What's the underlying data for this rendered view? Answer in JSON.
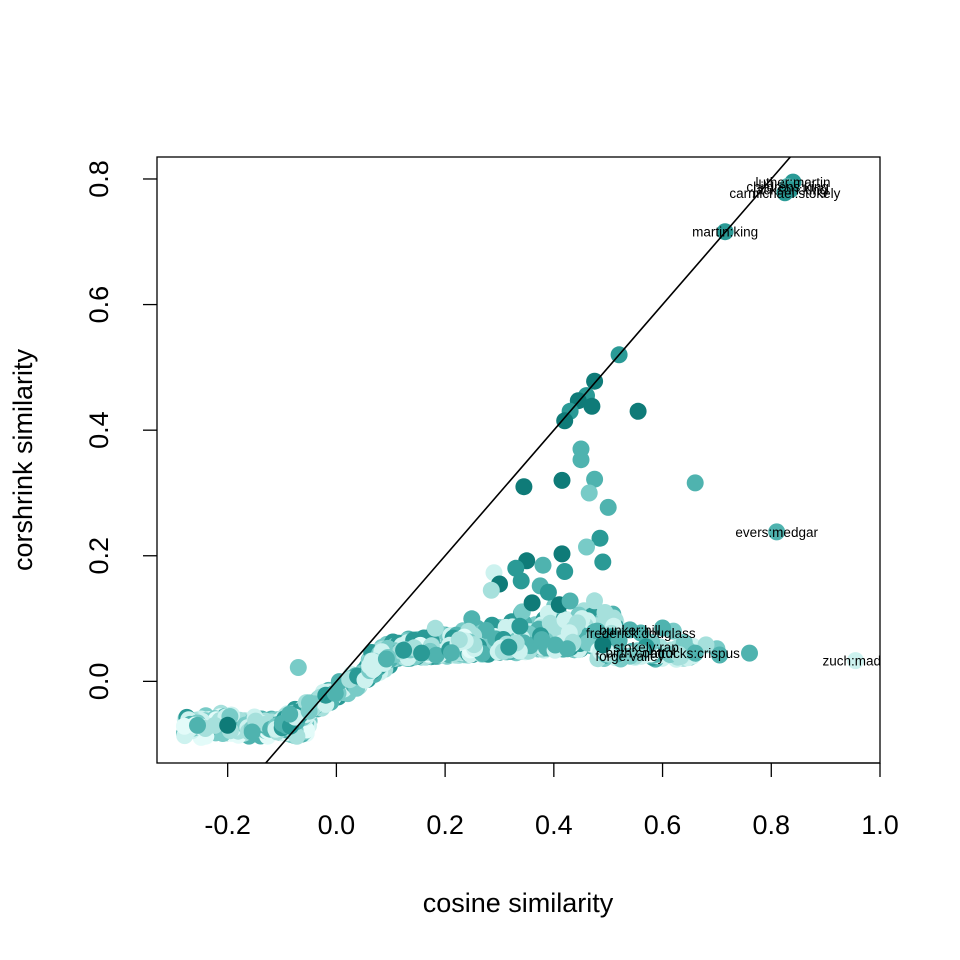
{
  "chart_data": {
    "type": "scatter",
    "title": "",
    "xlabel": "cosine similarity",
    "ylabel": "corshrink similarity",
    "xlim": [
      -0.33,
      1.0
    ],
    "ylim": [
      -0.13,
      0.835
    ],
    "xticks": [
      -0.2,
      0.0,
      0.2,
      0.4,
      0.6,
      0.8,
      1.0
    ],
    "yticks": [
      0.0,
      0.2,
      0.4,
      0.6,
      0.8
    ],
    "xtick_labels": [
      "-0.2",
      "0.0",
      "0.2",
      "0.4",
      "0.6",
      "0.8",
      "1.0"
    ],
    "ytick_labels": [
      "0.0",
      "0.2",
      "0.4",
      "0.6",
      "0.8"
    ],
    "reference_line": {
      "slope": 1,
      "intercept": 0
    },
    "palette": [
      "#0f7b78",
      "#2a9a96",
      "#4fb3af",
      "#78cbc7",
      "#a6e0dc",
      "#cdf2ef",
      "#e3fbf9"
    ],
    "grid": false,
    "legend": "none",
    "labeled_points": [
      {
        "x": 0.84,
        "y": 0.795,
        "label": "luther:martin",
        "color": "#2a9a96"
      },
      {
        "x": 0.83,
        "y": 0.788,
        "label": "childrens:king",
        "color": "#4fb3af"
      },
      {
        "x": 0.835,
        "y": 0.783,
        "label": "jackson:king",
        "color": "#2a9a96"
      },
      {
        "x": 0.825,
        "y": 0.778,
        "label": "carmichael:stokely",
        "color": "#2a9a96"
      },
      {
        "x": 0.715,
        "y": 0.716,
        "label": "martin:king",
        "color": "#2a9a96"
      },
      {
        "x": 0.81,
        "y": 0.238,
        "label": "evers:medgar",
        "color": "#4fb3af"
      },
      {
        "x": 0.54,
        "y": 0.082,
        "label": "bunker:hill",
        "color": "#4fb3af"
      },
      {
        "x": 0.56,
        "y": 0.077,
        "label": "frederick:douglass",
        "color": "#4fb3af"
      },
      {
        "x": 0.57,
        "y": 0.055,
        "label": "stokely:rap",
        "color": "#2a9a96"
      },
      {
        "x": 0.66,
        "y": 0.045,
        "label": "attucks:crispus",
        "color": "#4fb3af"
      },
      {
        "x": 0.56,
        "y": 0.046,
        "label": "birth:control",
        "color": "#78cbc7"
      },
      {
        "x": 0.54,
        "y": 0.04,
        "label": "forge:valley",
        "color": "#78cbc7"
      },
      {
        "x": 0.955,
        "y": 0.033,
        "label": "zuch:mada",
        "color": "#cdf2ef"
      }
    ],
    "highlight_points": [
      {
        "x": 0.52,
        "y": 0.52,
        "color": "#2a9a96"
      },
      {
        "x": 0.475,
        "y": 0.478,
        "color": "#0f7b78"
      },
      {
        "x": 0.46,
        "y": 0.455,
        "color": "#2a9a96"
      },
      {
        "x": 0.445,
        "y": 0.447,
        "color": "#0f7b78"
      },
      {
        "x": 0.47,
        "y": 0.438,
        "color": "#0f7b78"
      },
      {
        "x": 0.43,
        "y": 0.43,
        "color": "#2a9a96"
      },
      {
        "x": 0.42,
        "y": 0.415,
        "color": "#0f7b78"
      },
      {
        "x": 0.555,
        "y": 0.43,
        "color": "#0f7b78"
      },
      {
        "x": 0.45,
        "y": 0.37,
        "color": "#4fb3af"
      },
      {
        "x": 0.45,
        "y": 0.353,
        "color": "#4fb3af"
      },
      {
        "x": 0.475,
        "y": 0.322,
        "color": "#4fb3af"
      },
      {
        "x": 0.415,
        "y": 0.32,
        "color": "#0f7b78"
      },
      {
        "x": 0.345,
        "y": 0.31,
        "color": "#0f7b78"
      },
      {
        "x": 0.465,
        "y": 0.3,
        "color": "#78cbc7"
      },
      {
        "x": 0.66,
        "y": 0.316,
        "color": "#4fb3af"
      },
      {
        "x": 0.5,
        "y": 0.277,
        "color": "#4fb3af"
      },
      {
        "x": 0.485,
        "y": 0.228,
        "color": "#2a9a96"
      },
      {
        "x": 0.46,
        "y": 0.214,
        "color": "#78cbc7"
      },
      {
        "x": 0.415,
        "y": 0.203,
        "color": "#0f7b78"
      },
      {
        "x": 0.35,
        "y": 0.192,
        "color": "#0f7b78"
      },
      {
        "x": 0.49,
        "y": 0.19,
        "color": "#2a9a96"
      },
      {
        "x": 0.33,
        "y": 0.18,
        "color": "#2a9a96"
      },
      {
        "x": 0.38,
        "y": 0.185,
        "color": "#4fb3af"
      },
      {
        "x": 0.42,
        "y": 0.175,
        "color": "#2a9a96"
      },
      {
        "x": 0.29,
        "y": 0.173,
        "color": "#cdf2ef"
      },
      {
        "x": 0.34,
        "y": 0.16,
        "color": "#2a9a96"
      },
      {
        "x": 0.3,
        "y": 0.155,
        "color": "#0f7b78"
      },
      {
        "x": 0.375,
        "y": 0.152,
        "color": "#4fb3af"
      },
      {
        "x": 0.39,
        "y": 0.142,
        "color": "#2a9a96"
      },
      {
        "x": 0.41,
        "y": 0.122,
        "color": "#0f7b78"
      },
      {
        "x": 0.285,
        "y": 0.145,
        "color": "#a6e0dc"
      },
      {
        "x": 0.43,
        "y": 0.128,
        "color": "#4fb3af"
      },
      {
        "x": 0.36,
        "y": 0.125,
        "color": "#0f7b78"
      },
      {
        "x": 0.62,
        "y": 0.08,
        "color": "#78cbc7"
      },
      {
        "x": 0.6,
        "y": 0.085,
        "color": "#4fb3af"
      },
      {
        "x": 0.64,
        "y": 0.062,
        "color": "#78cbc7"
      },
      {
        "x": 0.7,
        "y": 0.052,
        "color": "#78cbc7"
      },
      {
        "x": 0.705,
        "y": 0.042,
        "color": "#4fb3af"
      },
      {
        "x": 0.68,
        "y": 0.058,
        "color": "#a6e0dc"
      },
      {
        "x": 0.63,
        "y": 0.043,
        "color": "#a6e0dc"
      },
      {
        "x": 0.76,
        "y": 0.045,
        "color": "#4fb3af"
      },
      {
        "x": 0.5,
        "y": 0.07,
        "color": "#2a9a96"
      },
      {
        "x": 0.48,
        "y": 0.08,
        "color": "#4fb3af"
      },
      {
        "x": 0.52,
        "y": 0.065,
        "color": "#4fb3af"
      },
      {
        "x": 0.49,
        "y": 0.058,
        "color": "#0f7b78"
      },
      {
        "x": 0.55,
        "y": 0.04,
        "color": "#a6e0dc"
      },
      {
        "x": 0.58,
        "y": 0.062,
        "color": "#78cbc7"
      },
      {
        "x": -0.2,
        "y": -0.07,
        "color": "#0f7b78"
      },
      {
        "x": -0.07,
        "y": 0.022,
        "color": "#78cbc7"
      }
    ],
    "clusters": [
      {
        "name_hint": "negative-cloud",
        "x_range": [
          -0.28,
          -0.05
        ],
        "y_center": -0.07,
        "y_spread": 0.022,
        "count": 340
      },
      {
        "name_hint": "transition",
        "x_range": [
          -0.1,
          0.1
        ],
        "y_center": 0.01,
        "y_spread": 0.02,
        "count": 260
      },
      {
        "name_hint": "main-band",
        "x_range": [
          0.06,
          0.52
        ],
        "y_center": 0.07,
        "y_spread": 0.035,
        "count": 900
      },
      {
        "name_hint": "tail",
        "x_range": [
          0.48,
          0.66
        ],
        "y_center": 0.045,
        "y_spread": 0.008,
        "count": 110
      }
    ]
  }
}
